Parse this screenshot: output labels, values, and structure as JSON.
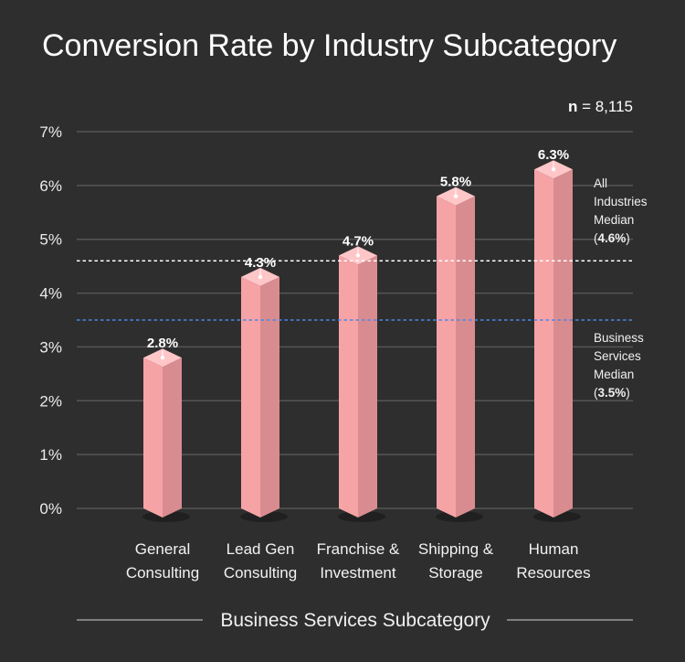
{
  "chart_data": {
    "type": "bar",
    "title": "Conversion Rate by Industry Subcategory",
    "xlabel": "Business Services Subcategory",
    "ylabel": "",
    "ylim": [
      0,
      7
    ],
    "y_ticks": [
      0,
      1,
      2,
      3,
      4,
      5,
      6,
      7
    ],
    "y_tick_labels": [
      "0%",
      "1%",
      "2%",
      "3%",
      "4%",
      "5%",
      "6%",
      "7%"
    ],
    "grid": true,
    "categories": [
      [
        "General",
        "Consulting"
      ],
      [
        "Lead Gen",
        "Consulting"
      ],
      [
        "Franchise &",
        "Investment"
      ],
      [
        "Shipping &",
        "Storage"
      ],
      [
        "Human",
        "Resources"
      ]
    ],
    "values": [
      2.8,
      4.3,
      4.7,
      5.8,
      6.3
    ],
    "value_labels": [
      "2.8%",
      "4.3%",
      "4.7%",
      "5.8%",
      "6.3%"
    ],
    "sample_size": {
      "label": "n",
      "equals": " = 8,115"
    },
    "reference_lines": [
      {
        "value": 4.6,
        "color": "#ffffff",
        "lines": [
          "All",
          "Industries",
          "Median"
        ],
        "value_label": "4.6%"
      },
      {
        "value": 3.5,
        "color": "#4a86e8",
        "lines": [
          "Business",
          "Services",
          "Median"
        ],
        "value_label": "3.5%"
      }
    ],
    "colors": {
      "bar_front": "#f6a3a6",
      "bar_side": "#d98c90",
      "bar_top": "#ffc6c8",
      "grid": "#555555",
      "background": "#2e2e2e"
    }
  }
}
